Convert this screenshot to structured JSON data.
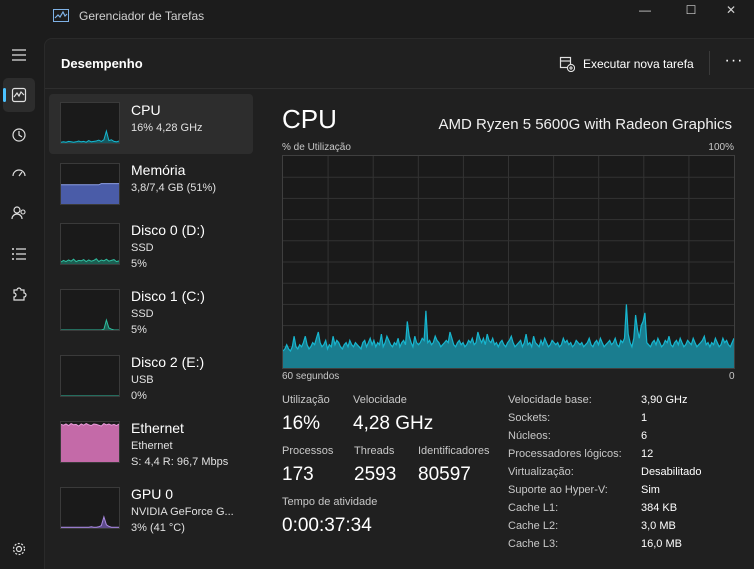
{
  "window": {
    "title": "Gerenciador de Tarefas",
    "controls": [
      "—",
      "☐",
      "✕"
    ]
  },
  "rail": {
    "items": [
      "processes",
      "performance",
      "app-history",
      "startup",
      "users",
      "details",
      "services",
      "settings"
    ],
    "active": "performance",
    "accent": "#4cc2ff"
  },
  "header": {
    "title": "Desempenho",
    "run_task_label": "Executar nova tarefa",
    "more_label": "···"
  },
  "devices": [
    {
      "name": "CPU",
      "lines": [
        "16% 4,28 GHz"
      ],
      "color": "#17b6cf",
      "fill": "#16585f",
      "graph": [
        0.02,
        0.03,
        0.02,
        0.04,
        0.03,
        0.02,
        0.03,
        0.05,
        0.03,
        0.04,
        0.02,
        0.06,
        0.03,
        0.04,
        0.05,
        0.07,
        0.04,
        0.08,
        0.3,
        0.06,
        0.08,
        0.04,
        0.03,
        0.05
      ]
    },
    {
      "name": "Memória",
      "lines": [
        "3,8/7,4 GB (51%)"
      ],
      "color": "#8c9fe8",
      "fill": "#4a5ca8",
      "graph": [
        0.48,
        0.48,
        0.48,
        0.48,
        0.48,
        0.48,
        0.48,
        0.48,
        0.48,
        0.48,
        0.48,
        0.48,
        0.48,
        0.48,
        0.48,
        0.48,
        0.51,
        0.51,
        0.51,
        0.51,
        0.51,
        0.51,
        0.51,
        0.51
      ]
    },
    {
      "name": "Disco 0 (D:)",
      "lines": [
        "SSD",
        "5%"
      ],
      "color": "#2fbfa0",
      "fill": "#1c5f52",
      "graph": [
        0.05,
        0.09,
        0.06,
        0.1,
        0.07,
        0.12,
        0.06,
        0.09,
        0.08,
        0.11,
        0.06,
        0.1,
        0.07,
        0.09,
        0.13,
        0.06,
        0.1,
        0.08,
        0.12,
        0.07,
        0.09,
        0.11,
        0.06,
        0.08
      ]
    },
    {
      "name": "Disco 1 (C:)",
      "lines": [
        "SSD",
        "5%"
      ],
      "color": "#2fbfa0",
      "fill": "#1c5f52",
      "graph": [
        0.0,
        0.0,
        0.0,
        0.0,
        0.0,
        0.0,
        0.0,
        0.0,
        0.0,
        0.0,
        0.0,
        0.0,
        0.0,
        0.0,
        0.0,
        0.0,
        0.0,
        0.02,
        0.25,
        0.05,
        0.02,
        0.0,
        0.0,
        0.0
      ]
    },
    {
      "name": "Disco 2 (E:)",
      "lines": [
        "USB",
        "0%"
      ],
      "color": "#2fbfa0",
      "fill": "#1c5f52",
      "graph": [
        0,
        0,
        0,
        0,
        0,
        0,
        0,
        0,
        0,
        0,
        0,
        0,
        0,
        0,
        0,
        0,
        0,
        0,
        0,
        0,
        0,
        0,
        0,
        0
      ]
    },
    {
      "name": "Ethernet",
      "lines": [
        "Ethernet",
        "S: 4,4  R: 96,7 Mbps"
      ],
      "color": "#e89ad8",
      "fill": "#c46aa8",
      "graph": [
        0.94,
        0.92,
        0.95,
        0.91,
        0.96,
        0.93,
        0.94,
        0.9,
        0.95,
        0.92,
        0.96,
        0.93,
        0.91,
        0.95,
        0.94,
        0.92,
        0.9,
        0.96,
        0.93,
        0.95,
        0.92,
        0.94,
        0.91,
        0.95
      ]
    },
    {
      "name": "GPU 0",
      "lines": [
        "NVIDIA GeForce G...",
        "3% (41 °C)"
      ],
      "color": "#a98ae0",
      "fill": "#5d4a8a",
      "graph": [
        0.02,
        0.02,
        0.02,
        0.02,
        0.02,
        0.02,
        0.02,
        0.02,
        0.02,
        0.02,
        0.02,
        0.02,
        0.03,
        0.02,
        0.02,
        0.03,
        0.06,
        0.28,
        0.08,
        0.04,
        0.02,
        0.02,
        0.02,
        0.02
      ]
    }
  ],
  "main": {
    "title": "CPU",
    "processor": "AMD Ryzen 5 5600G with Radeon Graphics",
    "axis": {
      "top_left": "% de Utilização",
      "top_right": "100%",
      "bottom_left": "60 segundos",
      "bottom_right": "0"
    },
    "graph_color": "#17b6cf",
    "graph_fill": "#1a7d8f",
    "cpu_history": [
      8,
      9,
      11,
      9,
      8,
      10,
      15,
      10,
      9,
      11,
      10,
      12,
      15,
      11,
      9,
      10,
      12,
      11,
      14,
      17,
      12,
      10,
      11,
      13,
      9,
      11,
      10,
      15,
      11,
      13,
      12,
      10,
      9,
      11,
      12,
      10,
      13,
      11,
      10,
      12,
      11,
      10,
      9,
      12,
      13,
      10,
      12,
      14,
      11,
      13,
      10,
      12,
      11,
      16,
      10,
      12,
      15,
      13,
      11,
      10,
      12,
      11,
      14,
      10,
      12,
      13,
      11,
      22,
      15,
      12,
      10,
      15,
      12,
      11,
      12,
      14,
      13,
      27,
      12,
      13,
      11,
      12,
      15,
      13,
      12,
      10,
      11,
      12,
      13,
      12,
      17,
      14,
      11,
      10,
      12,
      13,
      11,
      12,
      10,
      11,
      13,
      12,
      14,
      11,
      12,
      17,
      14,
      12,
      14,
      11,
      16,
      13,
      12,
      14,
      11,
      12,
      10,
      12,
      13,
      11,
      10,
      12,
      13,
      15,
      12,
      10,
      11,
      12,
      13,
      10,
      12,
      16,
      11,
      12,
      10,
      15,
      12,
      11,
      10,
      13,
      11,
      14,
      12,
      10,
      11,
      13,
      12,
      11,
      12,
      10,
      11,
      14,
      12,
      13,
      11,
      12,
      10,
      11,
      13,
      12,
      11,
      12,
      10,
      11,
      12,
      14,
      11,
      10,
      12,
      13,
      11,
      14,
      12,
      10,
      11,
      12,
      13,
      11,
      12,
      14,
      11,
      10,
      13,
      12,
      14,
      30,
      16,
      12,
      10,
      14,
      25,
      18,
      14,
      20,
      22,
      26,
      12,
      11,
      10,
      12,
      13,
      11,
      14,
      12,
      10,
      11,
      13,
      12,
      15,
      11,
      10,
      12,
      13,
      11,
      14,
      12,
      10,
      11,
      13,
      12,
      11,
      14,
      12,
      10,
      11,
      12,
      13,
      15,
      11,
      12,
      10,
      12,
      11,
      14,
      12,
      10,
      11,
      14,
      12,
      13,
      11,
      10,
      12,
      14
    ],
    "stats": {
      "utilization": {
        "label": "Utilização",
        "value": "16%"
      },
      "speed": {
        "label": "Velocidade",
        "value": "4,28 GHz"
      },
      "processes": {
        "label": "Processos",
        "value": "173"
      },
      "threads": {
        "label": "Threads",
        "value": "2593"
      },
      "handles": {
        "label": "Identificadores",
        "value": "80597"
      },
      "uptime": {
        "label": "Tempo de atividade",
        "value": "0:00:37:34"
      }
    },
    "info": [
      {
        "key": "Velocidade base:",
        "value": "3,90 GHz"
      },
      {
        "key": "Sockets:",
        "value": "1"
      },
      {
        "key": "Núcleos:",
        "value": "6"
      },
      {
        "key": "Processadores lógicos:",
        "value": "12"
      },
      {
        "key": "Virtualização:",
        "value": "Desabilitado"
      },
      {
        "key": "Suporte ao Hyper-V:",
        "value": "Sim"
      },
      {
        "key": "Cache L1:",
        "value": "384 KB"
      },
      {
        "key": "Cache L2:",
        "value": "3,0 MB"
      },
      {
        "key": "Cache L3:",
        "value": "16,0 MB"
      }
    ]
  }
}
